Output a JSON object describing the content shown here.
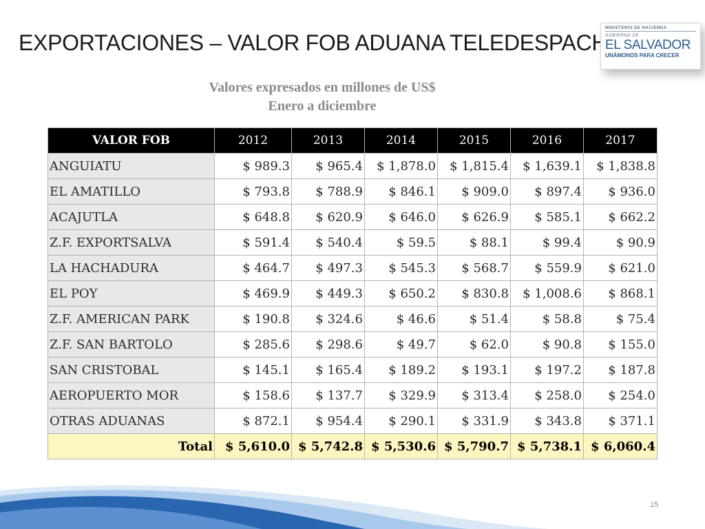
{
  "slide": {
    "title": "EXPORTACIONES – VALOR FOB ADUANA TELEDESPACHO",
    "subtitle_line1": "Valores expresados en millones de US$",
    "subtitle_line2": "Enero a diciembre",
    "page_number": "15"
  },
  "logo": {
    "line1": "MINISTERIO DE HACIENDA",
    "line2": "GOBIERNO DE",
    "line3": "EL SALVADOR",
    "line4": "UNÁMONOS PARA CRECER"
  },
  "table": {
    "header": [
      "VALOR FOB",
      "2012",
      "2013",
      "2014",
      "2015",
      "2016",
      "2017"
    ],
    "rows": [
      {
        "label": "ANGUIATU",
        "values": [
          "$ 989.3",
          "$ 965.4",
          "$ 1,878.0",
          "$ 1,815.4",
          "$ 1,639.1",
          "$ 1,838.8"
        ]
      },
      {
        "label": "EL AMATILLO",
        "values": [
          "$ 793.8",
          "$ 788.9",
          "$ 846.1",
          "$ 909.0",
          "$ 897.4",
          "$ 936.0"
        ]
      },
      {
        "label": "ACAJUTLA",
        "values": [
          "$ 648.8",
          "$ 620.9",
          "$ 646.0",
          "$ 626.9",
          "$ 585.1",
          "$ 662.2"
        ]
      },
      {
        "label": "Z.F. EXPORTSALVA",
        "values": [
          "$ 591.4",
          "$ 540.4",
          "$ 59.5",
          "$ 88.1",
          "$ 99.4",
          "$ 90.9"
        ]
      },
      {
        "label": "LA HACHADURA",
        "values": [
          "$ 464.7",
          "$ 497.3",
          "$ 545.3",
          "$ 568.7",
          "$ 559.9",
          "$ 621.0"
        ]
      },
      {
        "label": "EL POY",
        "values": [
          "$ 469.9",
          "$ 449.3",
          "$ 650.2",
          "$ 830.8",
          "$ 1,008.6",
          "$ 868.1"
        ]
      },
      {
        "label": "Z.F. AMERICAN PARK",
        "values": [
          "$ 190.8",
          "$ 324.6",
          "$ 46.6",
          "$ 51.4",
          "$ 58.8",
          "$ 75.4"
        ]
      },
      {
        "label": "Z.F. SAN BARTOLO",
        "values": [
          "$ 285.6",
          "$ 298.6",
          "$ 49.7",
          "$ 62.0",
          "$ 90.8",
          "$ 155.0"
        ]
      },
      {
        "label": "SAN CRISTOBAL",
        "values": [
          "$ 145.1",
          "$ 165.4",
          "$ 189.2",
          "$ 193.1",
          "$ 197.2",
          "$ 187.8"
        ]
      },
      {
        "label": "AEROPUERTO MOR",
        "values": [
          "$ 158.6",
          "$ 137.7",
          "$ 329.9",
          "$ 313.4",
          "$ 258.0",
          "$ 254.0"
        ]
      },
      {
        "label": "OTRAS ADUANAS",
        "values": [
          "$ 872.1",
          "$ 954.4",
          "$ 290.1",
          "$ 331.9",
          "$ 343.8",
          "$ 371.1"
        ]
      }
    ],
    "total": {
      "label": "Total",
      "values": [
        "$ 5,610.0",
        "$ 5,742.8",
        "$ 5,530.6",
        "$ 5,790.7",
        "$ 5,738.1",
        "$ 6,060.4"
      ]
    }
  },
  "colors": {
    "header_bg": "#000000",
    "label_bg": "#e8e8e8",
    "total_bg": "#fdf6c0",
    "swoosh_blue": "#2a66b0",
    "swoosh_light": "#a9c9ec"
  }
}
